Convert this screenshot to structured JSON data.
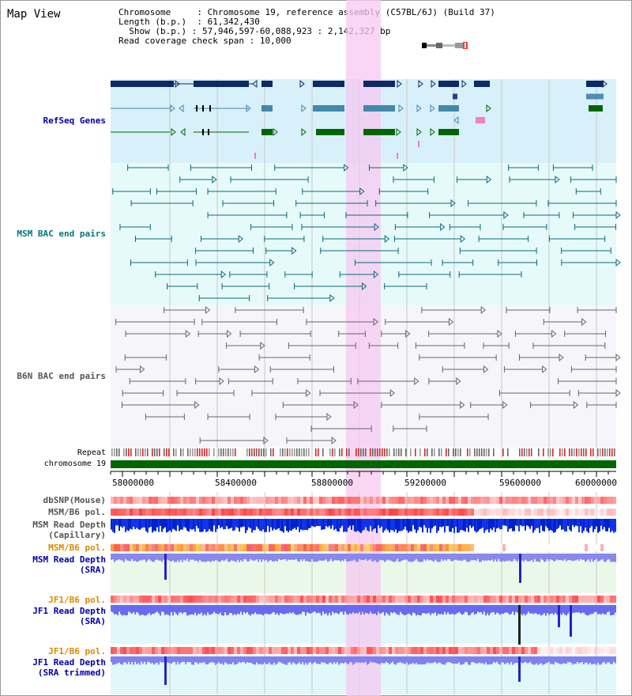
{
  "title": "Map View",
  "info": {
    "chromosome_label": "Chromosome",
    "chromosome_value": "Chromosome 19, reference assembly (C57BL/6J) (Build 37)",
    "length_label": "Length (b.p.)",
    "length_value": "61,342,430",
    "show_label": "Show (b.p.)",
    "show_value": "57,946,597-60,088,923 : 2,142,327 bp",
    "coverage_label": "Read coverage check span",
    "coverage_value": "10,000"
  },
  "tracks": {
    "refseq": "RefSeq Genes",
    "msm_bac": "MSM BAC end pairs",
    "b6n_bac": "B6N BAC end pairs",
    "repeat": "Repeat",
    "chromosome": "chromosome 19",
    "dbsnp": "dbSNP(Mouse)",
    "msm_b6_pol_1": "MSM/B6 pol.",
    "msm_read_depth_cap_1": "MSM Read Depth",
    "msm_read_depth_cap_2": "(Capillary)",
    "msm_b6_pol_2": "MSM/B6 pol.",
    "msm_read_depth_sra_1": "MSM Read Depth",
    "msm_read_depth_sra_2": "(SRA)",
    "jf1_b6_pol_1": "JF1/B6 pol.",
    "jf1_read_depth_sra_1": "JF1 Read Depth",
    "jf1_read_depth_sra_2": "(SRA)",
    "jf1_b6_pol_2": "JF1/B6 pol.",
    "jf1_read_depth_trim_1": "JF1 Read Depth",
    "jf1_read_depth_trim_2": "(SRA trimmed)"
  },
  "axis_ticks": [
    "58000000",
    "58400000",
    "58800000",
    "59200000",
    "59600000",
    "60000000"
  ],
  "colors": {
    "refseq_label": "#0000aa",
    "msm_label": "#007777",
    "b6n_label": "#555555",
    "pol_label": "#dd8800",
    "depth_label": "#0000aa",
    "highlight": "#f5c8f0"
  }
}
